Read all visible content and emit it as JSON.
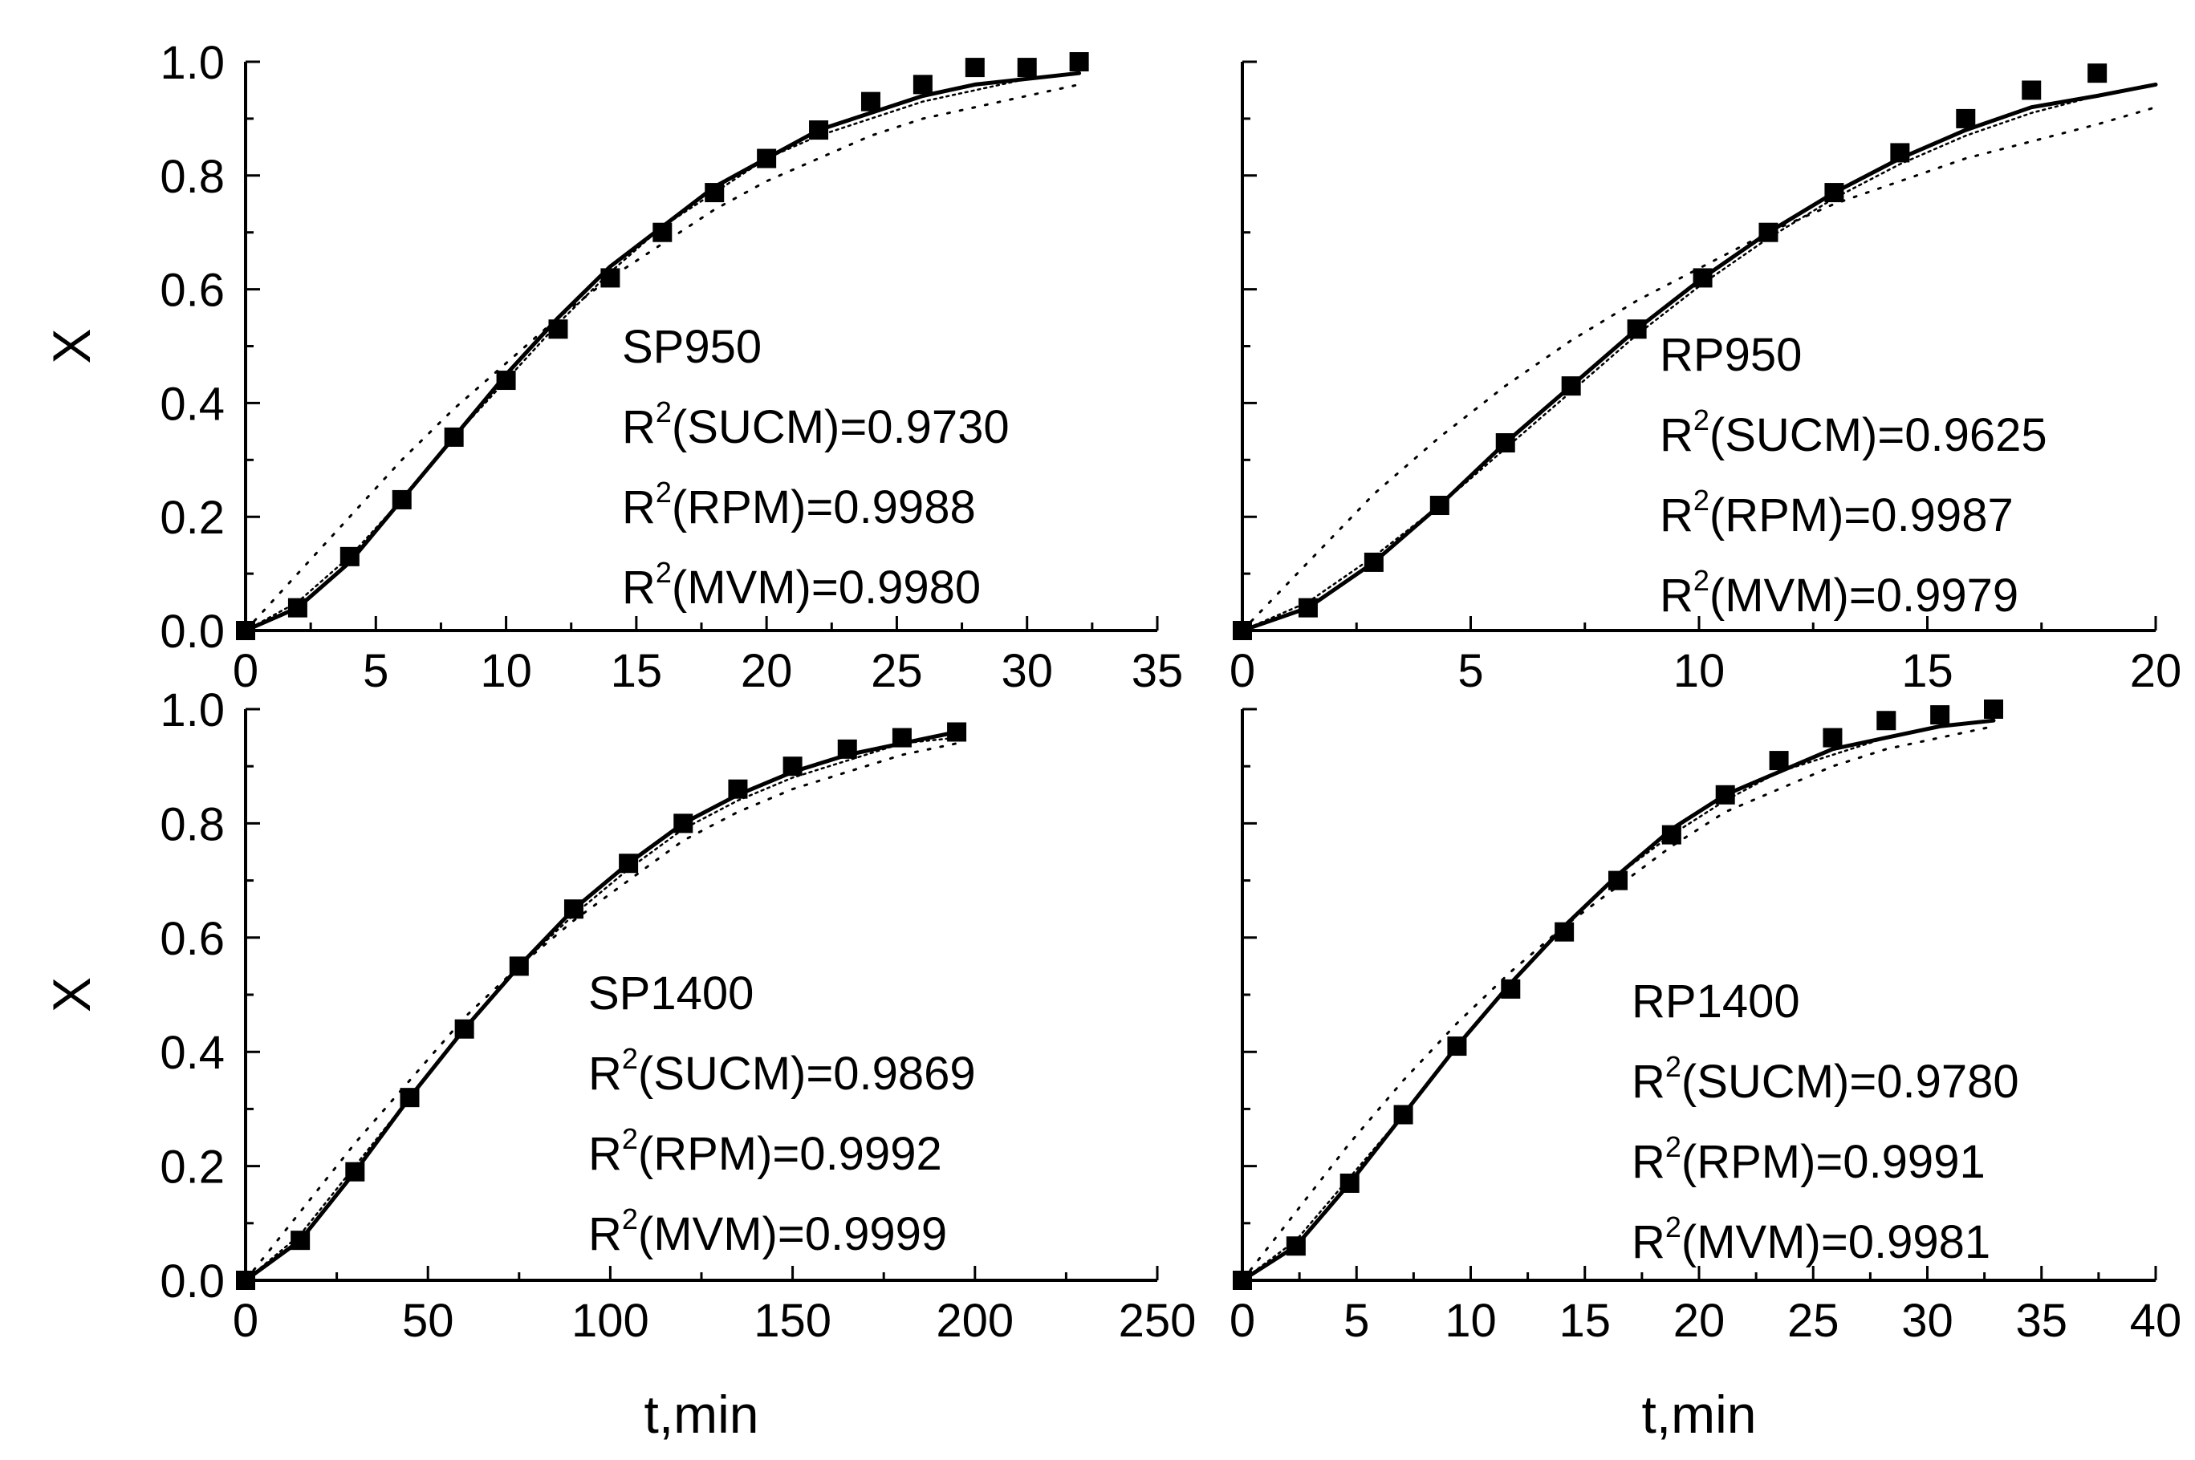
{
  "colors": {
    "axis": "#000000",
    "marker": "#000000",
    "background": "#ffffff"
  },
  "chart_data": [
    {
      "type": "line",
      "x": [
        0,
        2,
        4,
        6,
        8,
        10,
        12,
        14,
        16,
        18,
        20,
        22,
        24,
        26,
        28,
        30,
        32
      ],
      "series": [
        {
          "values": [
            0.0,
            0.04,
            0.13,
            0.23,
            0.34,
            0.44,
            0.53,
            0.62,
            0.7,
            0.77,
            0.83,
            0.88,
            0.93,
            0.96,
            0.99,
            0.99,
            1.0
          ],
          "style": "markers"
        },
        {
          "values": [
            0.0,
            0.04,
            0.12,
            0.23,
            0.34,
            0.45,
            0.55,
            0.64,
            0.71,
            0.78,
            0.83,
            0.88,
            0.91,
            0.94,
            0.96,
            0.97,
            0.98
          ],
          "style": "solid"
        },
        {
          "values": [
            0.0,
            0.05,
            0.13,
            0.23,
            0.34,
            0.44,
            0.54,
            0.63,
            0.71,
            0.77,
            0.83,
            0.87,
            0.9,
            0.93,
            0.95,
            0.97,
            0.98
          ],
          "style": "short-dash"
        },
        {
          "values": [
            0.0,
            0.1,
            0.2,
            0.3,
            0.39,
            0.47,
            0.55,
            0.62,
            0.68,
            0.74,
            0.79,
            0.83,
            0.87,
            0.9,
            0.92,
            0.94,
            0.96
          ],
          "style": "dotted"
        }
      ],
      "xlabel": "",
      "ylabel": "X",
      "xlim": [
        0,
        35
      ],
      "ylim": [
        0.0,
        1.0
      ],
      "xticks": [
        "0",
        "5",
        "10",
        "15",
        "20",
        "25",
        "30",
        "35"
      ],
      "yticks": [
        "0.0",
        "0.2",
        "0.4",
        "0.6",
        "0.8",
        "1.0"
      ],
      "annotation": {
        "sample": "SP950",
        "lines": [
          {
            "prefix": "R",
            "sup": "2",
            "text": "(SUCM)=0.9730"
          },
          {
            "prefix": "R",
            "sup": "2",
            "text": "(RPM)=0.9988"
          },
          {
            "prefix": "R",
            "sup": "2",
            "text": "(MVM)=0.9980"
          }
        ]
      }
    },
    {
      "type": "line",
      "x": [
        0,
        1.44,
        2.88,
        4.32,
        5.76,
        7.2,
        8.64,
        10.08,
        11.52,
        12.96,
        14.4,
        15.84,
        17.28,
        18.72,
        20
      ],
      "series": [
        {
          "values": [
            0.0,
            0.04,
            0.12,
            0.22,
            0.33,
            0.43,
            0.53,
            0.62,
            0.7,
            0.77,
            0.84,
            0.9,
            0.95,
            0.98,
            null
          ],
          "style": "markers"
        },
        {
          "values": [
            0.0,
            0.04,
            0.12,
            0.22,
            0.33,
            0.43,
            0.53,
            0.62,
            0.7,
            0.77,
            0.83,
            0.88,
            0.92,
            0.94,
            0.96
          ],
          "style": "solid"
        },
        {
          "values": [
            0.0,
            0.05,
            0.13,
            0.22,
            0.32,
            0.42,
            0.52,
            0.61,
            0.69,
            0.76,
            0.82,
            0.87,
            0.91,
            0.94,
            0.96
          ],
          "style": "short-dash"
        },
        {
          "values": [
            0.0,
            0.12,
            0.24,
            0.34,
            0.43,
            0.51,
            0.58,
            0.64,
            0.7,
            0.75,
            0.79,
            0.83,
            0.86,
            0.89,
            0.92
          ],
          "style": "dotted"
        }
      ],
      "xlabel": "",
      "ylabel": "",
      "xlim": [
        0,
        20
      ],
      "ylim": [
        0.0,
        1.0
      ],
      "xticks": [
        "0",
        "5",
        "10",
        "15",
        "20"
      ],
      "yticks": [],
      "annotation": {
        "sample": "RP950",
        "lines": [
          {
            "prefix": "R",
            "sup": "2",
            "text": "(SUCM)=0.9625"
          },
          {
            "prefix": "R",
            "sup": "2",
            "text": "(RPM)=0.9987"
          },
          {
            "prefix": "R",
            "sup": "2",
            "text": "(MVM)=0.9979"
          }
        ]
      }
    },
    {
      "type": "line",
      "x": [
        0,
        15,
        30,
        45,
        60,
        75,
        90,
        105,
        120,
        135,
        150,
        165,
        180,
        195
      ],
      "series": [
        {
          "values": [
            0.0,
            0.07,
            0.19,
            0.32,
            0.44,
            0.55,
            0.65,
            0.73,
            0.8,
            0.86,
            0.9,
            0.93,
            0.95,
            0.96
          ],
          "style": "markers"
        },
        {
          "values": [
            0.0,
            0.07,
            0.19,
            0.32,
            0.44,
            0.55,
            0.65,
            0.73,
            0.8,
            0.85,
            0.89,
            0.92,
            0.94,
            0.96
          ],
          "style": "solid"
        },
        {
          "values": [
            0.0,
            0.08,
            0.2,
            0.32,
            0.44,
            0.55,
            0.64,
            0.72,
            0.79,
            0.84,
            0.88,
            0.91,
            0.94,
            0.95
          ],
          "style": "short-dash"
        },
        {
          "values": [
            0.0,
            0.12,
            0.24,
            0.35,
            0.46,
            0.55,
            0.63,
            0.7,
            0.77,
            0.82,
            0.86,
            0.89,
            0.92,
            0.94
          ],
          "style": "dotted"
        }
      ],
      "xlabel": "t,min",
      "ylabel": "X",
      "xlim": [
        0,
        250
      ],
      "ylim": [
        0.0,
        1.0
      ],
      "xticks": [
        "0",
        "50",
        "100",
        "150",
        "200",
        "250"
      ],
      "yticks": [
        "0.0",
        "0.2",
        "0.4",
        "0.6",
        "0.8",
        "1.0"
      ],
      "annotation": {
        "sample": "SP1400",
        "lines": [
          {
            "prefix": "R",
            "sup": "2",
            "text": "(SUCM)=0.9869"
          },
          {
            "prefix": "R",
            "sup": "2",
            "text": "(RPM)=0.9992"
          },
          {
            "prefix": "R",
            "sup": "2",
            "text": "(MVM)=0.9999"
          }
        ]
      }
    },
    {
      "type": "line",
      "x": [
        0,
        2.35,
        4.7,
        7.05,
        9.4,
        11.75,
        14.1,
        16.45,
        18.8,
        21.15,
        23.5,
        25.85,
        28.2,
        30.55,
        32.9
      ],
      "series": [
        {
          "values": [
            0.0,
            0.06,
            0.17,
            0.29,
            0.41,
            0.51,
            0.61,
            0.7,
            0.78,
            0.85,
            0.91,
            0.95,
            0.98,
            0.99,
            1.0
          ],
          "style": "markers"
        },
        {
          "values": [
            0.0,
            0.06,
            0.17,
            0.29,
            0.41,
            0.52,
            0.62,
            0.71,
            0.79,
            0.85,
            0.89,
            0.93,
            0.95,
            0.97,
            0.98
          ],
          "style": "solid"
        },
        {
          "values": [
            0.0,
            0.07,
            0.18,
            0.29,
            0.41,
            0.52,
            0.62,
            0.71,
            0.78,
            0.84,
            0.89,
            0.92,
            0.95,
            0.97,
            0.98
          ],
          "style": "short-dash"
        },
        {
          "values": [
            0.0,
            0.12,
            0.24,
            0.35,
            0.45,
            0.54,
            0.62,
            0.69,
            0.76,
            0.82,
            0.86,
            0.9,
            0.93,
            0.95,
            0.97
          ],
          "style": "dotted"
        }
      ],
      "xlabel": "t,min",
      "ylabel": "",
      "xlim": [
        0,
        40
      ],
      "ylim": [
        0.0,
        1.0
      ],
      "xticks": [
        "0",
        "5",
        "10",
        "15",
        "20",
        "25",
        "30",
        "35",
        "40"
      ],
      "yticks": [],
      "annotation": {
        "sample": "RP1400",
        "lines": [
          {
            "prefix": "R",
            "sup": "2",
            "text": "(SUCM)=0.9780"
          },
          {
            "prefix": "R",
            "sup": "2",
            "text": "(RPM)=0.9991"
          },
          {
            "prefix": "R",
            "sup": "2",
            "text": "(MVM)=0.9981"
          }
        ]
      }
    }
  ]
}
